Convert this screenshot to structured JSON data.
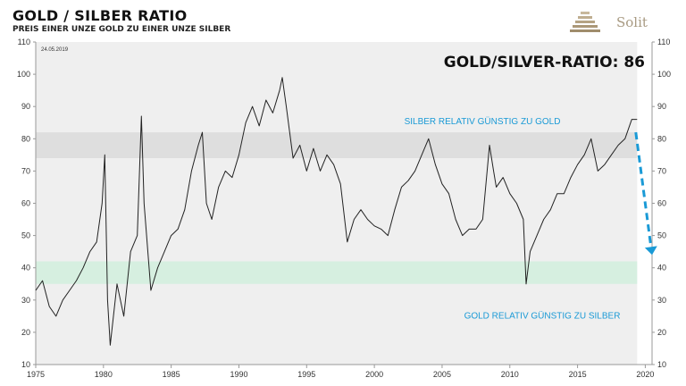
{
  "header": {
    "title": "GOLD / SILBER  RATIO",
    "subtitle": "PREIS EINER UNZE GOLD ZU EINER UNZE SILBER",
    "logo_text": "Solit"
  },
  "chart_data": {
    "type": "line",
    "date_label": "24.05.2019",
    "headline": "GOLD/SILVER-RATIO: 86",
    "annotation_upper": "SILBER RELATIV GÜNSTIG ZU GOLD",
    "annotation_lower": "GOLD RELATIV GÜNSTIG ZU SILBER",
    "annotation_color": "#1a9ad6",
    "line_color": "#222222",
    "xlim": [
      1975,
      2020.5
    ],
    "ylim": [
      10,
      110
    ],
    "x_ticks": [
      1975,
      1980,
      1985,
      1990,
      1995,
      2000,
      2005,
      2010,
      2015,
      2020
    ],
    "y_ticks": [
      10,
      20,
      30,
      40,
      50,
      60,
      70,
      80,
      90,
      100,
      110
    ],
    "upper_band": {
      "from": 74,
      "to": 82,
      "color": "#dedede"
    },
    "lower_band": {
      "from": 35,
      "to": 42,
      "color": "#d6efe0"
    },
    "forecast_arrow": {
      "from": [
        2019.3,
        82
      ],
      "to": [
        2020.5,
        44
      ],
      "color": "#1a9ad6"
    },
    "series": [
      {
        "x": [
          1975,
          1975.5,
          1976,
          1976.5,
          1977,
          1977.5,
          1978,
          1978.5,
          1979,
          1979.5,
          1979.9,
          1980.1,
          1980.3,
          1980.5,
          1981,
          1981.5,
          1982,
          1982.5,
          1982.8,
          1983,
          1983.5,
          1984,
          1984.5,
          1985,
          1985.5,
          1986,
          1986.5,
          1987,
          1987.3,
          1987.6,
          1988,
          1988.5,
          1989,
          1989.5,
          1990,
          1990.5,
          1991,
          1991.5,
          1992,
          1992.5,
          1993,
          1993.2,
          1993.5,
          1994,
          1994.5,
          1995,
          1995.5,
          1996,
          1996.5,
          1997,
          1997.5,
          1998,
          1998.5,
          1999,
          1999.5,
          2000,
          2000.5,
          2001,
          2001.5,
          2002,
          2002.5,
          2003,
          2003.5,
          2004,
          2004.5,
          2005,
          2005.5,
          2006,
          2006.5,
          2007,
          2007.5,
          2008,
          2008.5,
          2008.8,
          2009,
          2009.5,
          2010,
          2010.5,
          2011,
          2011.2,
          2011.5,
          2012,
          2012.5,
          2013,
          2013.5,
          2014,
          2014.5,
          2015,
          2015.5,
          2016,
          2016.5,
          2017,
          2017.5,
          2018,
          2018.5,
          2019,
          2019.4
        ],
        "y": [
          33,
          36,
          28,
          25,
          30,
          33,
          36,
          40,
          45,
          48,
          60,
          75,
          30,
          16,
          35,
          25,
          45,
          50,
          87,
          60,
          33,
          40,
          45,
          50,
          52,
          58,
          70,
          78,
          82,
          60,
          55,
          65,
          70,
          68,
          75,
          85,
          90,
          84,
          92,
          88,
          95,
          99,
          90,
          74,
          78,
          70,
          77,
          70,
          75,
          72,
          66,
          48,
          55,
          58,
          55,
          53,
          52,
          50,
          58,
          65,
          67,
          70,
          75,
          80,
          72,
          66,
          63,
          55,
          50,
          52,
          52,
          55,
          78,
          70,
          65,
          68,
          63,
          60,
          55,
          35,
          45,
          50,
          55,
          58,
          63,
          63,
          68,
          72,
          75,
          80,
          70,
          72,
          75,
          78,
          80,
          86,
          86
        ]
      }
    ]
  }
}
